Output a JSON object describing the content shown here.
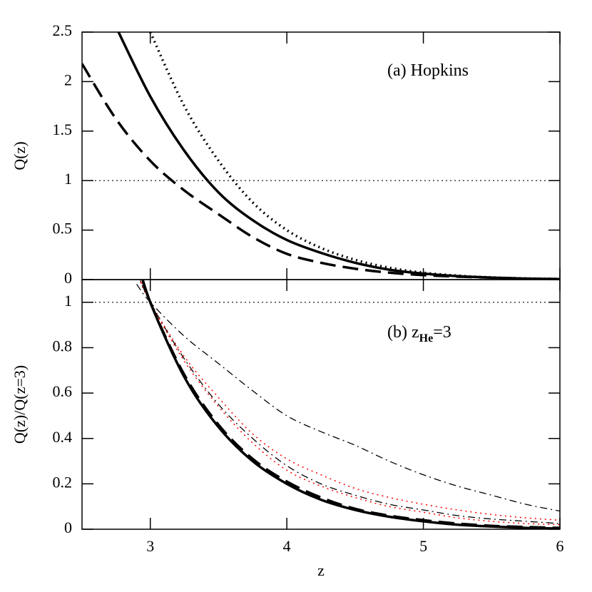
{
  "chart_data": [
    {
      "type": "line",
      "ylabel": "Q(z)",
      "annotation": [
        "(a)  Hopkins"
      ],
      "x": [
        2.5,
        2.75,
        3,
        3.25,
        3.5,
        3.75,
        4,
        4.25,
        4.5,
        4.75,
        5,
        5.25,
        5.5,
        5.75,
        6
      ],
      "xlim": [
        2.5,
        6
      ],
      "xticks": [
        3,
        4,
        5,
        6
      ],
      "ylim": [
        0,
        2.5
      ],
      "yticks": [
        0,
        0.5,
        1,
        1.5,
        2,
        2.5
      ],
      "hline": 1,
      "series": [
        {
          "color": "#000000",
          "dash": "dashed",
          "width": 3.5,
          "values": [
            2.18,
            1.62,
            1.2,
            0.9,
            0.66,
            0.43,
            0.26,
            0.17,
            0.11,
            0.07,
            0.045,
            0.03,
            0.02,
            0.01,
            0.005
          ]
        },
        {
          "color": "#000000",
          "dash": "solid",
          "width": 3.5,
          "values": [
            null,
            2.55,
            1.85,
            1.3,
            0.88,
            0.6,
            0.4,
            0.27,
            0.17,
            0.1,
            0.06,
            0.035,
            0.02,
            0.01,
            0.005
          ]
        },
        {
          "color": "#000000",
          "dash": "dotted",
          "width": 3.5,
          "values": [
            null,
            null,
            2.5,
            1.75,
            1.2,
            0.78,
            0.5,
            0.32,
            0.2,
            0.12,
            0.07,
            0.04,
            0.022,
            0.012,
            0.006
          ]
        }
      ]
    },
    {
      "type": "line",
      "ylabel": "Q(z)/Q(z=3)",
      "xlabel": "z",
      "annotation": [
        "(b)  z",
        "He",
        "=3"
      ],
      "x": [
        2.9,
        3,
        3.25,
        3.5,
        3.75,
        4,
        4.25,
        4.5,
        4.75,
        5,
        5.25,
        5.5,
        5.75,
        6
      ],
      "xlim": [
        2.5,
        6
      ],
      "xticks": [
        3,
        4,
        5,
        6
      ],
      "ylim": [
        0,
        1.1
      ],
      "yticks": [
        0,
        0.2,
        0.4,
        0.6,
        0.8,
        1
      ],
      "hline": 1,
      "series": [
        {
          "color": "#000000",
          "dash": "dashdot",
          "width": 1.3,
          "values": [
            1.08,
            1,
            0.85,
            0.73,
            0.61,
            0.5,
            0.43,
            0.37,
            0.3,
            0.24,
            0.19,
            0.15,
            0.11,
            0.08
          ]
        },
        {
          "color": "#ff0000",
          "dash": "dotted",
          "width": 1.5,
          "values": [
            1.13,
            1,
            0.76,
            0.58,
            0.42,
            0.31,
            0.24,
            0.18,
            0.14,
            0.11,
            0.085,
            0.065,
            0.05,
            0.04
          ]
        },
        {
          "color": "#000000",
          "dash": "dashdot",
          "width": 1.3,
          "values": [
            1.14,
            1,
            0.75,
            0.55,
            0.4,
            0.28,
            0.2,
            0.15,
            0.11,
            0.085,
            0.06,
            0.045,
            0.035,
            0.025
          ]
        },
        {
          "color": "#ff0000",
          "dash": "dotted",
          "width": 1.5,
          "values": [
            1.15,
            1,
            0.74,
            0.54,
            0.38,
            0.26,
            0.19,
            0.14,
            0.1,
            0.075,
            0.05,
            0.035,
            0.025,
            0.02
          ]
        },
        {
          "color": "#000000",
          "dash": "dashed",
          "width": 3.5,
          "values": [
            1.19,
            1,
            0.68,
            0.46,
            0.31,
            0.21,
            0.14,
            0.09,
            0.06,
            0.04,
            0.025,
            0.015,
            0.01,
            0.006
          ]
        },
        {
          "color": "#000000",
          "dash": "solid",
          "width": 3.5,
          "values": [
            1.2,
            1,
            0.67,
            0.45,
            0.3,
            0.2,
            0.13,
            0.085,
            0.055,
            0.035,
            0.02,
            0.012,
            0.006,
            0.003
          ]
        }
      ]
    }
  ]
}
